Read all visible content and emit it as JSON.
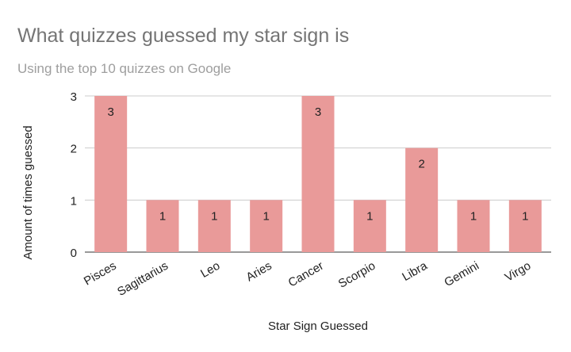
{
  "chart_data": {
    "type": "bar",
    "title": "What quizzes guessed my star sign is",
    "subtitle": "Using the top 10 quizzes on Google",
    "xlabel": "Star Sign Guessed",
    "ylabel": "Amount of times guessed",
    "categories": [
      "Pisces",
      "Sagittarius",
      "Leo",
      "Aries",
      "Cancer",
      "Scorpio",
      "Libra",
      "Gemini",
      "Virgo"
    ],
    "values": [
      3,
      1,
      1,
      1,
      3,
      1,
      2,
      1,
      1
    ],
    "ylim": [
      0,
      3
    ],
    "yticks": [
      0,
      1,
      2,
      3
    ],
    "grid": true,
    "data_labels": true,
    "bar_color": "#e99a99"
  }
}
